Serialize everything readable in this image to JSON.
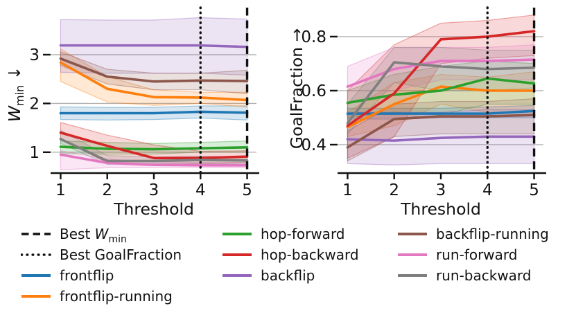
{
  "figure": {
    "background": "#ffffff",
    "grid_color": "#b3b3b3",
    "text_color": "#111111"
  },
  "chart_data": [
    {
      "type": "line",
      "id": "wmin",
      "xlabel": "Threshold",
      "ylabel_parts": [
        {
          "t": "W",
          "style": "italic"
        },
        {
          "t": "min",
          "style": "sub"
        },
        {
          "t": " ↓"
        }
      ],
      "x": [
        1,
        2,
        3,
        4,
        5
      ],
      "x_tick_labels": [
        "1",
        "2",
        "3",
        "4",
        "5"
      ],
      "y_ticks": [
        {
          "v": 1,
          "label": "1"
        },
        {
          "v": 2,
          "label": "2"
        },
        {
          "v": 3,
          "label": "3"
        }
      ],
      "xlim": [
        0.8,
        5.2
      ],
      "ylim": [
        0.6,
        3.98
      ],
      "grid": true,
      "vlines": [
        {
          "x": 4,
          "style": "dotted",
          "name": "best-goalfraction-vline"
        },
        {
          "x": 5,
          "style": "dashed",
          "name": "best-wmin-vline"
        }
      ],
      "series": [
        {
          "name": "frontflip",
          "color": "#1f77b4",
          "values": [
            1.8,
            1.8,
            1.8,
            1.83,
            1.81
          ],
          "lo": [
            1.67,
            1.66,
            1.67,
            1.7,
            1.66
          ],
          "hi": [
            1.93,
            1.92,
            1.92,
            1.95,
            1.95
          ]
        },
        {
          "name": "frontflip-running",
          "color": "#ff7f0e",
          "values": [
            2.84,
            2.3,
            2.13,
            2.12,
            2.07
          ],
          "lo": [
            2.45,
            2.03,
            1.96,
            2.0,
            1.93
          ],
          "hi": [
            3.12,
            2.55,
            2.28,
            2.23,
            2.23
          ]
        },
        {
          "name": "hop-forward",
          "color": "#2ca02c",
          "values": [
            1.11,
            1.07,
            1.06,
            1.08,
            1.1
          ],
          "lo": [
            0.97,
            0.96,
            0.96,
            1.0,
            1.0
          ],
          "hi": [
            1.23,
            1.2,
            1.18,
            1.2,
            1.23
          ]
        },
        {
          "name": "hop-backward",
          "color": "#d62728",
          "values": [
            1.4,
            1.13,
            0.88,
            0.88,
            0.91
          ],
          "lo": [
            1.27,
            0.78,
            0.74,
            0.76,
            0.79
          ],
          "hi": [
            1.61,
            1.35,
            1.15,
            1.02,
            1.03
          ]
        },
        {
          "name": "backflip",
          "color": "#9467bd",
          "values": [
            3.19,
            3.19,
            3.19,
            3.19,
            3.16
          ],
          "lo": [
            2.64,
            2.62,
            2.62,
            2.62,
            2.58
          ],
          "hi": [
            3.72,
            3.71,
            3.71,
            3.76,
            3.73
          ]
        },
        {
          "name": "backflip-running",
          "color": "#8c564b",
          "values": [
            2.92,
            2.55,
            2.45,
            2.47,
            2.46
          ],
          "lo": [
            2.78,
            2.4,
            2.28,
            2.28,
            2.2
          ],
          "hi": [
            3.06,
            2.7,
            2.62,
            2.62,
            2.68
          ]
        },
        {
          "name": "run-forward",
          "color": "#e377c2",
          "values": [
            0.95,
            0.78,
            0.74,
            0.73,
            0.73
          ],
          "lo": [
            0.64,
            0.68,
            0.69,
            0.69,
            0.68
          ],
          "hi": [
            1.03,
            0.86,
            0.8,
            0.79,
            0.79
          ]
        },
        {
          "name": "run-backward",
          "color": "#7f7f7f",
          "values": [
            1.27,
            0.82,
            0.82,
            0.84,
            0.83
          ],
          "lo": [
            1.18,
            0.75,
            0.76,
            0.77,
            0.76
          ],
          "hi": [
            1.45,
            0.93,
            0.9,
            0.92,
            0.9
          ]
        }
      ]
    },
    {
      "type": "line",
      "id": "goalfraction",
      "xlabel": "Threshold",
      "ylabel_parts": [
        {
          "t": "GoalFraction →"
        }
      ],
      "x": [
        1,
        2,
        3,
        4,
        5
      ],
      "x_tick_labels": [
        "1",
        "2",
        "3",
        "4",
        "5"
      ],
      "y_ticks": [
        {
          "v": 0.4,
          "label": "0.4"
        },
        {
          "v": 0.6,
          "label": "0.6"
        },
        {
          "v": 0.8,
          "label": "0.8"
        }
      ],
      "xlim": [
        0.8,
        5.2
      ],
      "ylim": [
        0.3,
        0.91
      ],
      "grid": true,
      "vlines": [
        {
          "x": 4,
          "style": "dotted",
          "name": "best-goalfraction-vline"
        },
        {
          "x": 5,
          "style": "dashed",
          "name": "best-wmin-vline"
        }
      ],
      "series": [
        {
          "name": "frontflip",
          "color": "#1f77b4",
          "values": [
            0.515,
            0.515,
            0.515,
            0.515,
            0.525
          ],
          "lo": [
            0.495,
            0.495,
            0.5,
            0.5,
            0.5
          ],
          "hi": [
            0.535,
            0.535,
            0.535,
            0.54,
            0.545
          ]
        },
        {
          "name": "frontflip-running",
          "color": "#ff7f0e",
          "values": [
            0.465,
            0.55,
            0.615,
            0.6,
            0.6
          ],
          "lo": [
            0.43,
            0.47,
            0.55,
            0.52,
            0.52
          ],
          "hi": [
            0.52,
            0.63,
            0.66,
            0.65,
            0.67
          ]
        },
        {
          "name": "hop-forward",
          "color": "#2ca02c",
          "values": [
            0.555,
            0.585,
            0.6,
            0.645,
            0.627
          ],
          "lo": [
            0.5,
            0.52,
            0.51,
            0.55,
            0.55
          ],
          "hi": [
            0.6,
            0.66,
            0.69,
            0.71,
            0.7
          ]
        },
        {
          "name": "hop-backward",
          "color": "#d62728",
          "values": [
            0.47,
            0.59,
            0.79,
            0.8,
            0.82
          ],
          "lo": [
            0.35,
            0.43,
            0.7,
            0.72,
            0.73
          ],
          "hi": [
            0.6,
            0.77,
            0.85,
            0.86,
            0.88
          ]
        },
        {
          "name": "backflip",
          "color": "#9467bd",
          "values": [
            0.42,
            0.415,
            0.425,
            0.43,
            0.43
          ],
          "lo": [
            0.33,
            0.325,
            0.33,
            0.33,
            0.33
          ],
          "hi": [
            0.52,
            0.52,
            0.52,
            0.53,
            0.53
          ]
        },
        {
          "name": "backflip-running",
          "color": "#8c564b",
          "values": [
            0.39,
            0.495,
            0.505,
            0.505,
            0.51
          ],
          "lo": [
            0.34,
            0.43,
            0.44,
            0.44,
            0.44
          ],
          "hi": [
            0.45,
            0.55,
            0.56,
            0.56,
            0.57
          ]
        },
        {
          "name": "run-forward",
          "color": "#e377c2",
          "values": [
            0.615,
            0.68,
            0.71,
            0.71,
            0.715
          ],
          "lo": [
            0.55,
            0.6,
            0.64,
            0.64,
            0.64
          ],
          "hi": [
            0.69,
            0.76,
            0.76,
            0.76,
            0.77
          ]
        },
        {
          "name": "run-backward",
          "color": "#7f7f7f",
          "values": [
            0.48,
            0.705,
            0.69,
            0.68,
            0.685
          ],
          "lo": [
            0.44,
            0.63,
            0.6,
            0.6,
            0.61
          ],
          "hi": [
            0.55,
            0.76,
            0.76,
            0.75,
            0.75
          ]
        }
      ]
    }
  ],
  "legend": {
    "columns": [
      [
        {
          "name": "best-wmin",
          "style": "dashed",
          "color": "#111111",
          "label_parts": [
            {
              "t": "Best "
            },
            {
              "t": "W",
              "style": "italic"
            },
            {
              "t": "min",
              "style": "sub"
            }
          ]
        },
        {
          "name": "best-goalfraction",
          "style": "dotted",
          "color": "#111111",
          "label_parts": [
            {
              "t": "Best GoalFraction"
            }
          ]
        },
        {
          "name": "frontflip",
          "style": "solid",
          "color": "#1f77b4",
          "label_parts": [
            {
              "t": "frontflip"
            }
          ]
        },
        {
          "name": "frontflip-running",
          "style": "solid",
          "color": "#ff7f0e",
          "label_parts": [
            {
              "t": "frontflip-running"
            }
          ]
        }
      ],
      [
        {
          "name": "hop-forward",
          "style": "solid",
          "color": "#2ca02c",
          "label_parts": [
            {
              "t": "hop-forward"
            }
          ]
        },
        {
          "name": "hop-backward",
          "style": "solid",
          "color": "#d62728",
          "label_parts": [
            {
              "t": "hop-backward"
            }
          ]
        },
        {
          "name": "backflip",
          "style": "solid",
          "color": "#9467bd",
          "label_parts": [
            {
              "t": "backflip"
            }
          ]
        }
      ],
      [
        {
          "name": "backflip-running",
          "style": "solid",
          "color": "#8c564b",
          "label_parts": [
            {
              "t": "backflip-running"
            }
          ]
        },
        {
          "name": "run-forward",
          "style": "solid",
          "color": "#e377c2",
          "label_parts": [
            {
              "t": "run-forward"
            }
          ]
        },
        {
          "name": "run-backward",
          "style": "solid",
          "color": "#7f7f7f",
          "label_parts": [
            {
              "t": "run-backward"
            }
          ]
        }
      ]
    ]
  }
}
